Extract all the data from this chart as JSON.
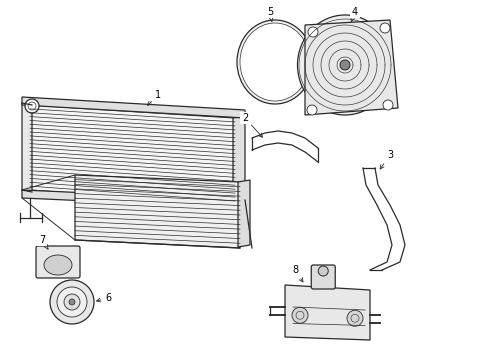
{
  "bg_color": "#ffffff",
  "line_color": "#2a2a2a",
  "label_color": "#000000",
  "lw": 0.9
}
